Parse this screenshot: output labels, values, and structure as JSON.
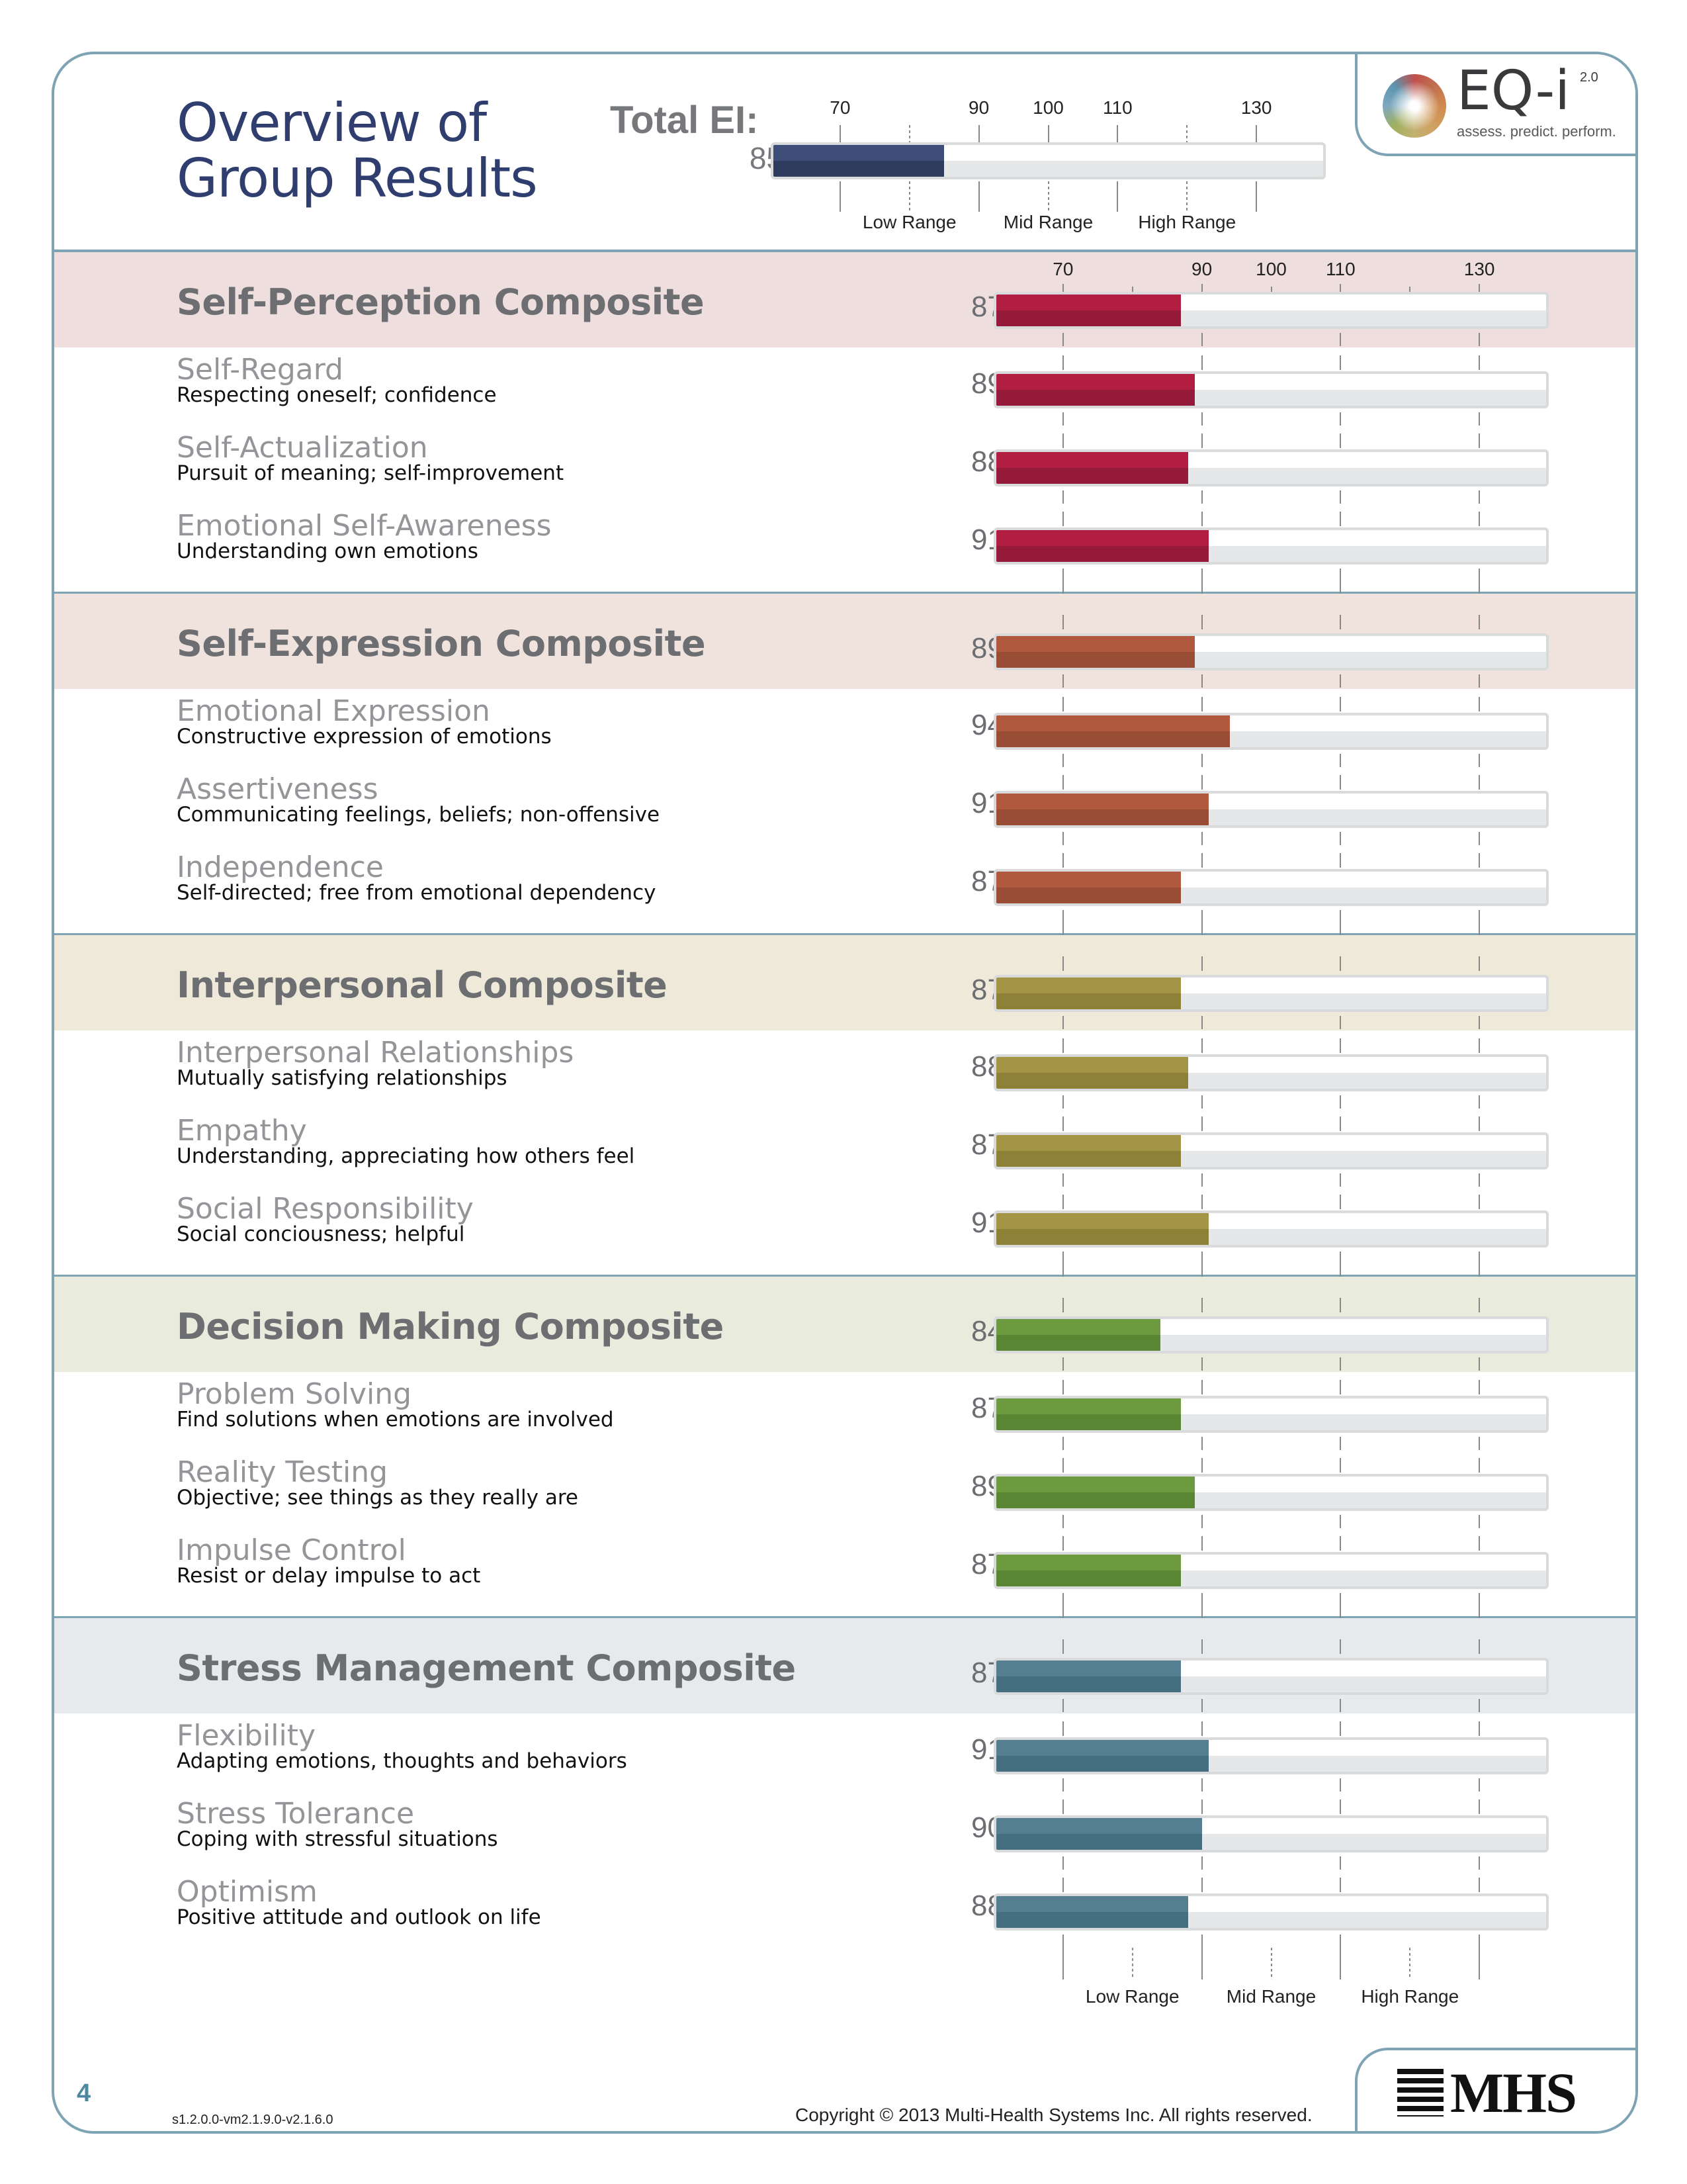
{
  "header": {
    "title_line1": "Overview of",
    "title_line2": "Group Results",
    "total_ei_label": "Total EI:",
    "total_ei_value": 85
  },
  "logo": {
    "name": "EQ-i",
    "version": "2.0",
    "tagline": "assess. predict. perform."
  },
  "scale": {
    "min": 60,
    "max": 140,
    "tick_labels": [
      "70",
      "90",
      "100",
      "110",
      "130"
    ],
    "tick_values": [
      70,
      90,
      100,
      110,
      130
    ],
    "ranges": [
      {
        "label": "Low Range",
        "value": 80
      },
      {
        "label": "Mid Range",
        "value": 100
      },
      {
        "label": "High Range",
        "value": 120
      }
    ]
  },
  "colors": {
    "total_bar": "#3f4e78",
    "border": "#7ea3b5"
  },
  "composites": [
    {
      "name": "Self-Perception Composite",
      "score": 87,
      "band": "#eedfde",
      "bar": "#b11e42",
      "bar_dark": "#961a3a",
      "subscales": [
        {
          "name": "Self-Regard",
          "desc": "Respecting oneself; confidence",
          "score": 89
        },
        {
          "name": "Self-Actualization",
          "desc": "Pursuit of meaning; self-improvement",
          "score": 88
        },
        {
          "name": "Emotional Self-Awareness",
          "desc": "Understanding own emotions",
          "score": 91
        }
      ]
    },
    {
      "name": "Self-Expression Composite",
      "score": 89,
      "band": "#f0e3de",
      "bar": "#b0593e",
      "bar_dark": "#9a4d35",
      "subscales": [
        {
          "name": "Emotional Expression",
          "desc": "Constructive expression of emotions",
          "score": 94
        },
        {
          "name": "Assertiveness",
          "desc": "Communicating feelings, beliefs; non-offensive",
          "score": 91
        },
        {
          "name": "Independence",
          "desc": "Self-directed; free from emotional dependency",
          "score": 87
        }
      ]
    },
    {
      "name": "Interpersonal Composite",
      "score": 87,
      "band": "#efe9d9",
      "bar": "#a39545",
      "bar_dark": "#8d8138",
      "subscales": [
        {
          "name": "Interpersonal Relationships",
          "desc": "Mutually satisfying relationships",
          "score": 88
        },
        {
          "name": "Empathy",
          "desc": "Understanding, appreciating how others feel",
          "score": 87
        },
        {
          "name": "Social Responsibility",
          "desc": "Social conciousness; helpful",
          "score": 91
        }
      ]
    },
    {
      "name": "Decision Making Composite",
      "score": 84,
      "band": "#e9ebdd",
      "bar": "#6d9a3e",
      "bar_dark": "#5a8633",
      "subscales": [
        {
          "name": "Problem Solving",
          "desc": "Find solutions when emotions are involved",
          "score": 87
        },
        {
          "name": "Reality Testing",
          "desc": "Objective; see things as they really are",
          "score": 89
        },
        {
          "name": "Impulse Control",
          "desc": "Resist or delay impulse to act",
          "score": 87
        }
      ]
    },
    {
      "name": "Stress Management Composite",
      "score": 87,
      "band": "#e6eaec",
      "bar": "#557f91",
      "bar_dark": "#456f80",
      "subscales": [
        {
          "name": "Flexibility",
          "desc": "Adapting emotions, thoughts and behaviors",
          "score": 91
        },
        {
          "name": "Stress Tolerance",
          "desc": "Coping with stressful situations",
          "score": 90
        },
        {
          "name": "Optimism",
          "desc": "Positive attitude and outlook on life",
          "score": 88
        }
      ]
    }
  ],
  "footer": {
    "page_number": "4",
    "version": "s1.2.0.0-vm2.1.9.0-v2.1.6.0",
    "copyright": "Copyright © 2013 Multi-Health Systems Inc. All rights reserved.",
    "publisher_logo": "MHS"
  }
}
